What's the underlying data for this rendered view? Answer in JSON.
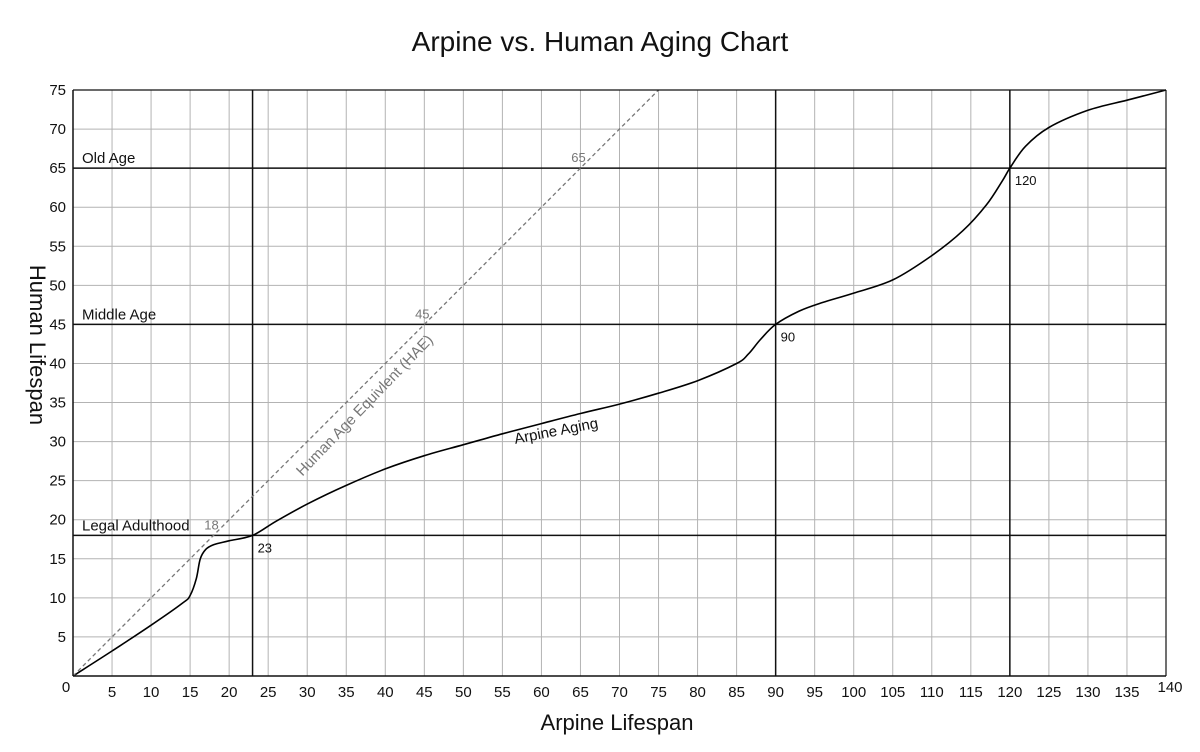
{
  "chart_data": {
    "type": "line",
    "title": "Arpine vs. Human Aging Chart",
    "xlabel": "Arpine Lifespan",
    "ylabel": "Human Lifespan",
    "xlim": [
      0,
      140
    ],
    "ylim": [
      0,
      75
    ],
    "x_ticks": [
      0,
      5,
      10,
      15,
      20,
      25,
      30,
      35,
      40,
      45,
      50,
      55,
      60,
      65,
      70,
      75,
      80,
      85,
      90,
      95,
      100,
      105,
      110,
      115,
      120,
      125,
      130,
      135,
      140
    ],
    "y_ticks": [
      5,
      10,
      15,
      20,
      25,
      30,
      35,
      40,
      45,
      50,
      55,
      60,
      65,
      70,
      75
    ],
    "grid": true,
    "series": [
      {
        "name": "Arpine Aging",
        "color": "#000000",
        "x": [
          0,
          5,
          10,
          14,
          15,
          15.8,
          16.3,
          17,
          18,
          20,
          23,
          26,
          30,
          35,
          40,
          45,
          50,
          55,
          60,
          65,
          70,
          75,
          80,
          85,
          86.5,
          88,
          90,
          93,
          96,
          100,
          105,
          110,
          114,
          117,
          119,
          120,
          122,
          125,
          130,
          135,
          140
        ],
        "y": [
          0,
          3.2,
          6.5,
          9.3,
          10.3,
          12.5,
          15,
          16.2,
          16.8,
          17.3,
          18,
          19.8,
          22,
          24.4,
          26.5,
          28.2,
          29.6,
          31,
          32.3,
          33.6,
          34.8,
          36.2,
          37.8,
          40,
          41.2,
          43,
          45,
          46.7,
          47.8,
          49,
          50.7,
          53.8,
          57,
          60.3,
          63.3,
          65,
          67.8,
          70.2,
          72.4,
          73.7,
          75
        ]
      },
      {
        "name": "Human Age Equivlent (HAE)",
        "color": "#777777",
        "dashed": true,
        "x": [
          0,
          75
        ],
        "y": [
          0,
          75
        ]
      }
    ],
    "reference_lines": {
      "horizontal": [
        {
          "y": 18,
          "label": "Legal Adulthood"
        },
        {
          "y": 45,
          "label": "Middle Age"
        },
        {
          "y": 65,
          "label": "Old Age"
        }
      ],
      "vertical": [
        {
          "x": 23,
          "label": "23"
        },
        {
          "x": 90,
          "label": "90"
        },
        {
          "x": 120,
          "label": "120"
        }
      ]
    },
    "annotations": [
      {
        "x": 18,
        "y": 18,
        "text": "18"
      },
      {
        "x": 45,
        "y": 45,
        "text": "45"
      },
      {
        "x": 65,
        "y": 65,
        "text": "65"
      }
    ]
  }
}
